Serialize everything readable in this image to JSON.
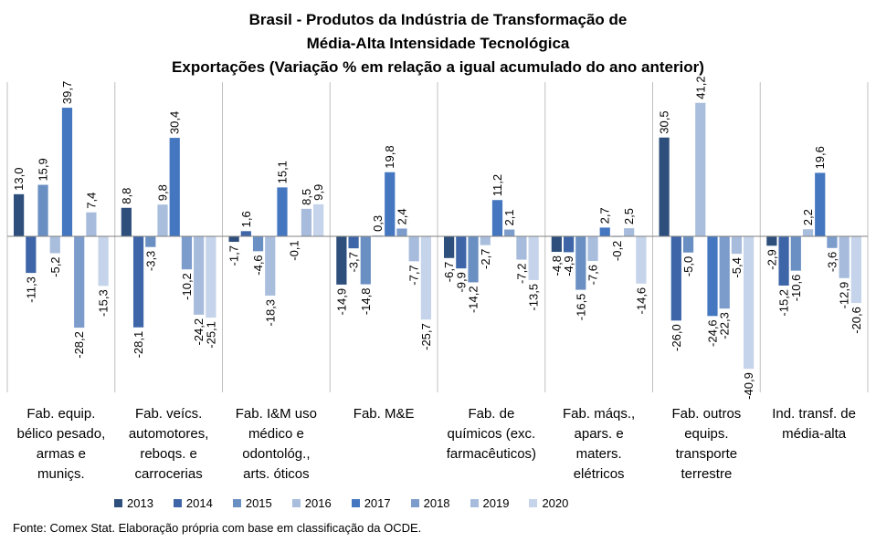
{
  "chart_data": {
    "type": "bar",
    "title": [
      "Brasil - Produtos da Indústria de Transformação de",
      "Média-Alta Intensidade Tecnológica",
      "Exportações (Variação % em relação a igual acumulado do ano anterior)"
    ],
    "categories": [
      [
        "Fab. equip.",
        "bélico pesado,",
        "armas e",
        "muniçs."
      ],
      [
        "Fab. veícs.",
        "automotores,",
        "reboqs. e",
        "carrocerias"
      ],
      [
        "Fab. I&M uso",
        "médico e",
        "odontológ.,",
        "arts. óticos"
      ],
      [
        "Fab. M&E"
      ],
      [
        "Fab. de",
        "químicos (exc.",
        "farmacêuticos)"
      ],
      [
        "Fab. máqs.,",
        "apars. e",
        "maters.",
        "elétricos"
      ],
      [
        "Fab. outros",
        "equips.",
        "transporte",
        "terrestre"
      ],
      [
        "Ind. transf. de",
        "média-alta"
      ]
    ],
    "series": [
      {
        "name": "2013",
        "color": "#2e4f7c",
        "values": [
          13.0,
          8.8,
          -1.7,
          -14.9,
          -6.7,
          -4.8,
          30.5,
          -2.9
        ],
        "labels": [
          "13,0",
          "8,8",
          "-1,7",
          "-14,9",
          "-6,7",
          "-4,8",
          "30,5",
          "-2,9"
        ]
      },
      {
        "name": "2014",
        "color": "#3d65a8",
        "values": [
          -11.3,
          -28.1,
          1.6,
          -3.7,
          -9.9,
          -4.9,
          -26.0,
          -15.2
        ],
        "labels": [
          "-11,3",
          "-28,1",
          "1,6",
          "-3,7",
          "-9,9",
          "-4,9",
          "-26,0",
          "-15,2"
        ]
      },
      {
        "name": "2015",
        "color": "#6a8fc2",
        "values": [
          15.9,
          -3.3,
          -4.6,
          -14.8,
          -14.2,
          -16.5,
          -5.0,
          -10.6
        ],
        "labels": [
          "15,9",
          "-3,3",
          "-4,6",
          "-14,8",
          "-14,2",
          "-16,5",
          "-5,0",
          "-10,6"
        ]
      },
      {
        "name": "2016",
        "color": "#a9bedd",
        "values": [
          -5.2,
          9.8,
          -18.3,
          0.3,
          -2.7,
          -7.6,
          41.2,
          2.2
        ],
        "labels": [
          "-5,2",
          "9,8",
          "-18,3",
          "0,3",
          "-2,7",
          "-7,6",
          "41,2",
          "2,2"
        ]
      },
      {
        "name": "2017",
        "color": "#4577c0",
        "values": [
          39.7,
          30.4,
          15.1,
          19.8,
          11.2,
          2.7,
          -24.6,
          19.6
        ],
        "labels": [
          "39,7",
          "30,4",
          "15,1",
          "19,8",
          "11,2",
          "2,7",
          "-24,6",
          "19,6"
        ]
      },
      {
        "name": "2018",
        "color": "#7c9ccc",
        "values": [
          -28.2,
          -10.2,
          -0.1,
          2.4,
          2.1,
          -0.2,
          -22.3,
          -3.6
        ],
        "labels": [
          "-28,2",
          "-10,2",
          "-0,1",
          "2,4",
          "2,1",
          "-0,2",
          "-22,3",
          "-3,6"
        ]
      },
      {
        "name": "2019",
        "color": "#a7bcdc",
        "values": [
          7.4,
          -24.2,
          8.5,
          -7.7,
          -7.2,
          2.5,
          -5.4,
          -12.9
        ],
        "labels": [
          "7,4",
          "-24,2",
          "8,5",
          "-7,7",
          "-7,2",
          "2,5",
          "-5,4",
          "-12,9"
        ]
      },
      {
        "name": "2020",
        "color": "#c5d4ea",
        "values": [
          -15.3,
          -25.1,
          9.9,
          -25.7,
          -13.5,
          -14.6,
          -40.9,
          -20.6
        ],
        "labels": [
          "-15,3",
          "-25,1",
          "9,9",
          "-25,7",
          "-13,5",
          "-14,6",
          "-40,9",
          "-20,6"
        ]
      }
    ],
    "xlabel": "",
    "ylabel": "",
    "ylim": [
      -50,
      50
    ],
    "legend": "bottom",
    "grid": false,
    "value_labels": "vertical",
    "source": "Fonte: Comex Stat. Elaboração própria com base em classificação da OCDE."
  }
}
